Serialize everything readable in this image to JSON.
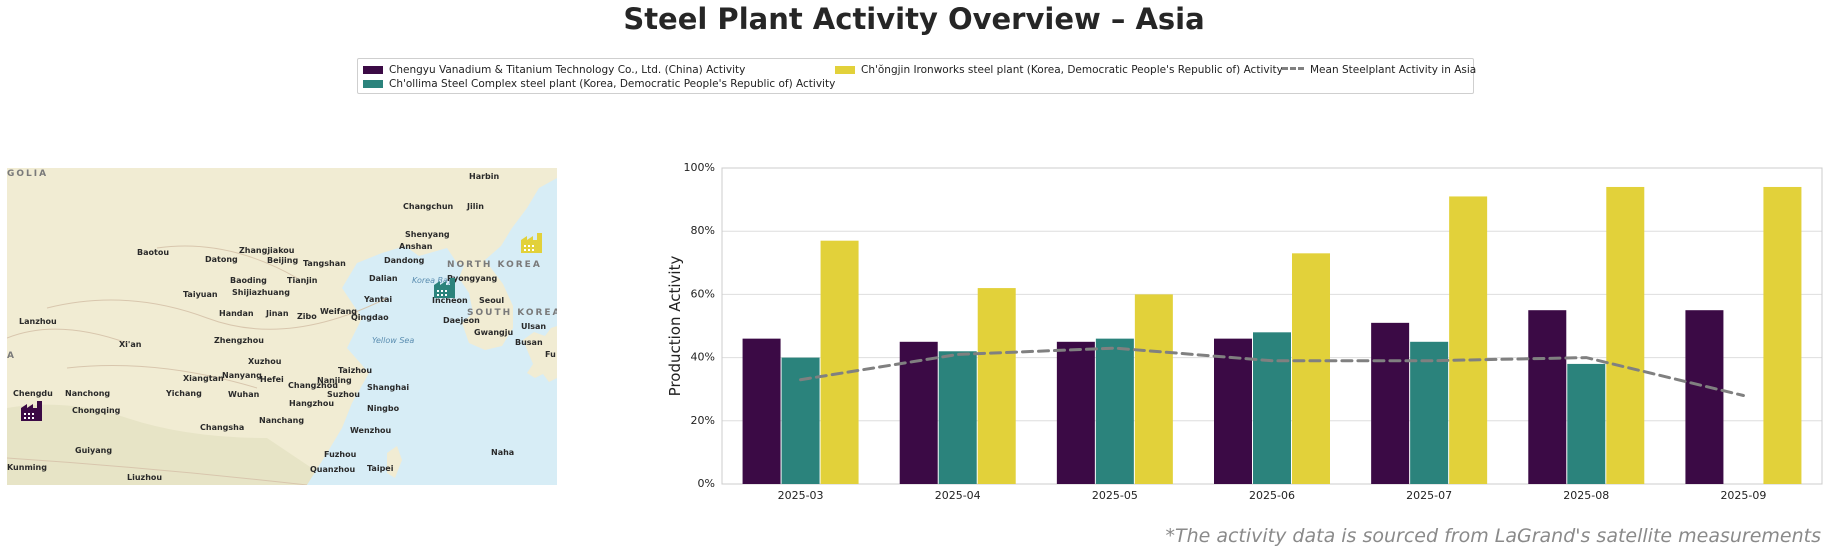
{
  "title": "Steel Plant Activity Overview – Asia",
  "footnote": "*The activity data is sourced from LaGrand's satellite measurements",
  "legend": {
    "items": [
      {
        "label": "Chengyu Vanadium & Titanium Technology Co., Ltd. (China) Activity",
        "color": "#3b0a45"
      },
      {
        "label": "Ch'ollima Steel Complex steel plant (Korea, Democratic People's Republic of) Activity",
        "color": "#2b837c"
      },
      {
        "label": "Ch'ŏngjin Ironworks steel plant (Korea, Democratic People's Republic of) Activity",
        "color": "#e2d13a"
      },
      {
        "label": "Mean Steelplant Activity in Asia",
        "color": "#808080"
      }
    ]
  },
  "map": {
    "region_labels": [
      "GOLIA",
      "NORTH KOREA",
      "SOUTH KOREA",
      "A"
    ],
    "sea_labels": [
      "Yellow Sea",
      "Korea Bay"
    ],
    "cities": [
      "Harbin",
      "Changchun",
      "Jilin",
      "Shenyang",
      "Anshan",
      "Baotou",
      "Datong",
      "Zhangjiakou",
      "Beijing",
      "Tangshan",
      "Dandong",
      "Pyongyang",
      "Baoding",
      "Tianjin",
      "Dalian",
      "Shijiazhuang",
      "Taiyuan",
      "Incheon",
      "Seoul",
      "Handan",
      "Jinan",
      "Zibo",
      "Weifang",
      "Qingdao",
      "Yantai",
      "Daejeon",
      "Lanzhou",
      "Gwangju",
      "Ulsan",
      "Busan",
      "Xi'an",
      "Zhengzhou",
      "Fu",
      "Xuzhou",
      "Taizhou",
      "Nanyang",
      "Xiangtan",
      "Hefei",
      "Nanjing",
      "Shanghai",
      "Chengdu",
      "Nanchong",
      "Yichang",
      "Wuhan",
      "Changzhou",
      "Suzhou",
      "Hangzhou",
      "Ningbo",
      "Chongqing",
      "Nanchang",
      "Changsha",
      "Wenzhou",
      "Fuzhou",
      "Naha",
      "Guiyang",
      "Quanzhou",
      "Taipei",
      "Kunming",
      "Liuzhou"
    ],
    "marker_colors": [
      "#3b0a45",
      "#2b837c",
      "#e2d13a"
    ],
    "marker_icon": "factory-icon"
  },
  "chart_data": {
    "type": "bar",
    "title": "",
    "xlabel": "",
    "ylabel": "Production Activity",
    "categories": [
      "2025-03",
      "2025-04",
      "2025-05",
      "2025-06",
      "2025-07",
      "2025-08",
      "2025-09"
    ],
    "series": [
      {
        "name": "Chengyu Vanadium & Titanium Technology Co., Ltd. (China) Activity",
        "color": "#3b0a45",
        "values": [
          46,
          45,
          45,
          46,
          51,
          55,
          55
        ]
      },
      {
        "name": "Ch'ollima Steel Complex steel plant (Korea, Democratic People's Republic of) Activity",
        "color": "#2b837c",
        "values": [
          40,
          42,
          46,
          48,
          45,
          38,
          null
        ]
      },
      {
        "name": "Ch'ŏngjin Ironworks steel plant (Korea, Democratic People's Republic of) Activity",
        "color": "#e2d13a",
        "values": [
          77,
          62,
          60,
          73,
          91,
          94,
          94
        ]
      }
    ],
    "mean_line": {
      "name": "Mean Steelplant Activity in Asia",
      "type": "line",
      "style": "dashed",
      "color": "#808080",
      "values": [
        33,
        41,
        43,
        39,
        39,
        40,
        28
      ]
    },
    "ylim": [
      0,
      100
    ],
    "yticks": [
      "0%",
      "20%",
      "40%",
      "60%",
      "80%",
      "100%"
    ],
    "grid": true,
    "legend_position": "top"
  }
}
